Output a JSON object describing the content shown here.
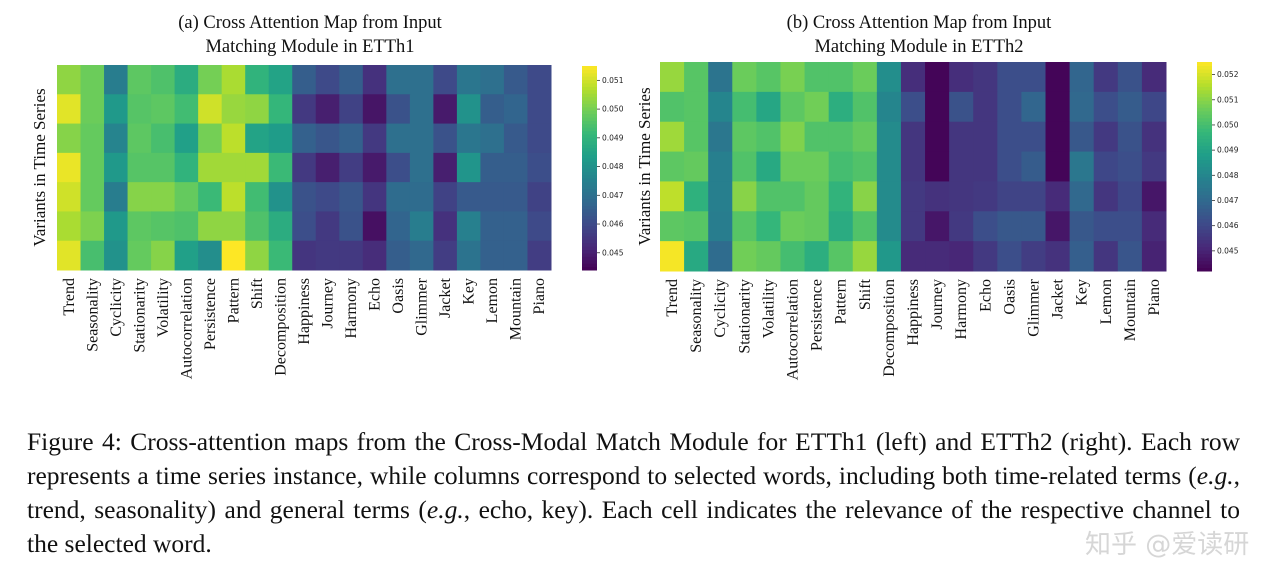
{
  "chart_data": [
    {
      "type": "heatmap",
      "title": "(a) Cross Attention Map from Input Matching Module in ETTh1",
      "title_lines": [
        "(a) Cross Attention Map from Input",
        "Matching Module in ETTh1"
      ],
      "ylabel": "Variants in Time Series",
      "xlabel": "",
      "colormap": "viridis",
      "colorbar": {
        "range": [
          0.0444,
          0.0515
        ],
        "ticks": [
          "0.045",
          "0.046",
          "0.047",
          "0.048",
          "0.049",
          "0.050",
          "0.051"
        ]
      },
      "columns": [
        "Trend",
        "Seasonality",
        "Cyclicity",
        "Stationarity",
        "Volatility",
        "Autocorrelation",
        "Persistence",
        "Pattern",
        "Shift",
        "Decomposition",
        "Happiness",
        "Journey",
        "Harmony",
        "Echo",
        "Oasis",
        "Glimmer",
        "Jacket",
        "Key",
        "Lemon",
        "Mountain",
        "Piano"
      ],
      "values": [
        [
          0.0503,
          0.0499,
          0.0474,
          0.0497,
          0.0495,
          0.0488,
          0.05,
          0.0506,
          0.049,
          0.0485,
          0.0465,
          0.046,
          0.0465,
          0.0454,
          0.047,
          0.047,
          0.046,
          0.0472,
          0.047,
          0.0464,
          0.046
        ],
        [
          0.0512,
          0.0499,
          0.0482,
          0.0496,
          0.0497,
          0.0493,
          0.051,
          0.0504,
          0.0503,
          0.0491,
          0.0456,
          0.045,
          0.0458,
          0.0448,
          0.0462,
          0.047,
          0.0449,
          0.048,
          0.0465,
          0.0467,
          0.046
        ],
        [
          0.0502,
          0.0498,
          0.0476,
          0.0497,
          0.0494,
          0.0484,
          0.05,
          0.0508,
          0.0485,
          0.0483,
          0.0466,
          0.0463,
          0.0466,
          0.0456,
          0.047,
          0.047,
          0.0462,
          0.0472,
          0.047,
          0.0464,
          0.046
        ],
        [
          0.0513,
          0.0498,
          0.0482,
          0.0496,
          0.0496,
          0.049,
          0.0505,
          0.0505,
          0.0505,
          0.0492,
          0.0456,
          0.045,
          0.0457,
          0.0449,
          0.0461,
          0.047,
          0.045,
          0.0481,
          0.0465,
          0.0465,
          0.0461
        ],
        [
          0.051,
          0.0498,
          0.0474,
          0.0502,
          0.0502,
          0.0498,
          0.0492,
          0.0508,
          0.0493,
          0.048,
          0.0462,
          0.046,
          0.0463,
          0.0455,
          0.0469,
          0.0469,
          0.0458,
          0.0464,
          0.0464,
          0.0464,
          0.0458
        ],
        [
          0.0506,
          0.0501,
          0.0482,
          0.0497,
          0.0496,
          0.0495,
          0.0503,
          0.0503,
          0.0495,
          0.0488,
          0.0461,
          0.0456,
          0.0462,
          0.0447,
          0.0467,
          0.0474,
          0.0454,
          0.0475,
          0.0466,
          0.0466,
          0.046
        ],
        [
          0.0512,
          0.0494,
          0.048,
          0.0498,
          0.0502,
          0.0484,
          0.0479,
          0.0515,
          0.0503,
          0.0492,
          0.0455,
          0.0456,
          0.0456,
          0.0453,
          0.0465,
          0.0468,
          0.0457,
          0.0471,
          0.0466,
          0.0466,
          0.0457
        ]
      ]
    },
    {
      "type": "heatmap",
      "title": "(b) Cross Attention Map from Input Matching Module in ETTh2",
      "title_lines": [
        "(b) Cross Attention Map from Input",
        "Matching Module in ETTh2"
      ],
      "ylabel": "Variants in Time Series",
      "xlabel": "",
      "colormap": "viridis",
      "colorbar": {
        "range": [
          0.0442,
          0.0525
        ],
        "ticks": [
          "0.045",
          "0.046",
          "0.047",
          "0.048",
          "0.049",
          "0.050",
          "0.051",
          "0.052"
        ]
      },
      "columns": [
        "Trend",
        "Seasonality",
        "Cyclicity",
        "Stationarity",
        "Volatility",
        "Autocorrelation",
        "Persistence",
        "Pattern",
        "Shift",
        "Decomposition",
        "Happiness",
        "Journey",
        "Harmony",
        "Echo",
        "Oasis",
        "Glimmer",
        "Jacket",
        "Key",
        "Lemon",
        "Mountain",
        "Piano"
      ],
      "values": [
        [
          0.0512,
          0.0503,
          0.0474,
          0.0506,
          0.0503,
          0.0508,
          0.0502,
          0.0502,
          0.0506,
          0.0483,
          0.0453,
          0.0443,
          0.0453,
          0.0455,
          0.0462,
          0.0462,
          0.0443,
          0.0469,
          0.0456,
          0.0463,
          0.0452
        ],
        [
          0.0502,
          0.0503,
          0.048,
          0.05,
          0.0491,
          0.0504,
          0.0507,
          0.0494,
          0.0502,
          0.048,
          0.0462,
          0.0443,
          0.0463,
          0.0455,
          0.0462,
          0.0469,
          0.0443,
          0.047,
          0.0462,
          0.0466,
          0.046
        ],
        [
          0.0513,
          0.0503,
          0.0475,
          0.0504,
          0.0502,
          0.0509,
          0.0502,
          0.0502,
          0.0505,
          0.0482,
          0.0455,
          0.0443,
          0.0455,
          0.0455,
          0.0462,
          0.0462,
          0.0443,
          0.0465,
          0.0456,
          0.0463,
          0.0454
        ],
        [
          0.0504,
          0.0505,
          0.0478,
          0.0502,
          0.0492,
          0.0506,
          0.0506,
          0.05,
          0.0502,
          0.0482,
          0.0455,
          0.0443,
          0.0455,
          0.0455,
          0.0462,
          0.0466,
          0.0443,
          0.0475,
          0.046,
          0.0462,
          0.0456
        ],
        [
          0.0517,
          0.0495,
          0.0478,
          0.051,
          0.0502,
          0.0502,
          0.0505,
          0.0496,
          0.051,
          0.0482,
          0.0456,
          0.0454,
          0.0455,
          0.0456,
          0.0459,
          0.0459,
          0.0452,
          0.047,
          0.0455,
          0.046,
          0.0447
        ],
        [
          0.0504,
          0.0503,
          0.0477,
          0.0503,
          0.0497,
          0.0506,
          0.0505,
          0.0493,
          0.0502,
          0.0482,
          0.0456,
          0.0447,
          0.0456,
          0.0462,
          0.0465,
          0.0465,
          0.0447,
          0.0465,
          0.0462,
          0.0462,
          0.0452
        ],
        [
          0.0524,
          0.0492,
          0.0471,
          0.0507,
          0.0505,
          0.05,
          0.0494,
          0.0503,
          0.0512,
          0.0486,
          0.0452,
          0.0452,
          0.0451,
          0.0456,
          0.0462,
          0.0457,
          0.0454,
          0.0467,
          0.0455,
          0.0464,
          0.045
        ]
      ]
    }
  ],
  "caption": {
    "p1": "Figure 4: Cross-attention maps from the Cross-Modal Match Module for ETTh1 (left) and ETTh2 (right). Each row represents a time series instance, while columns correspond to selected words, including both time-related terms (",
    "eg1": "e.g.",
    "p2": ", trend, seasonality) and general terms (",
    "eg2": "e.g.",
    "p3": ", echo, key). Each cell indicates the relevance of the respective channel to the selected word."
  },
  "watermark": "知乎 @爱读研"
}
